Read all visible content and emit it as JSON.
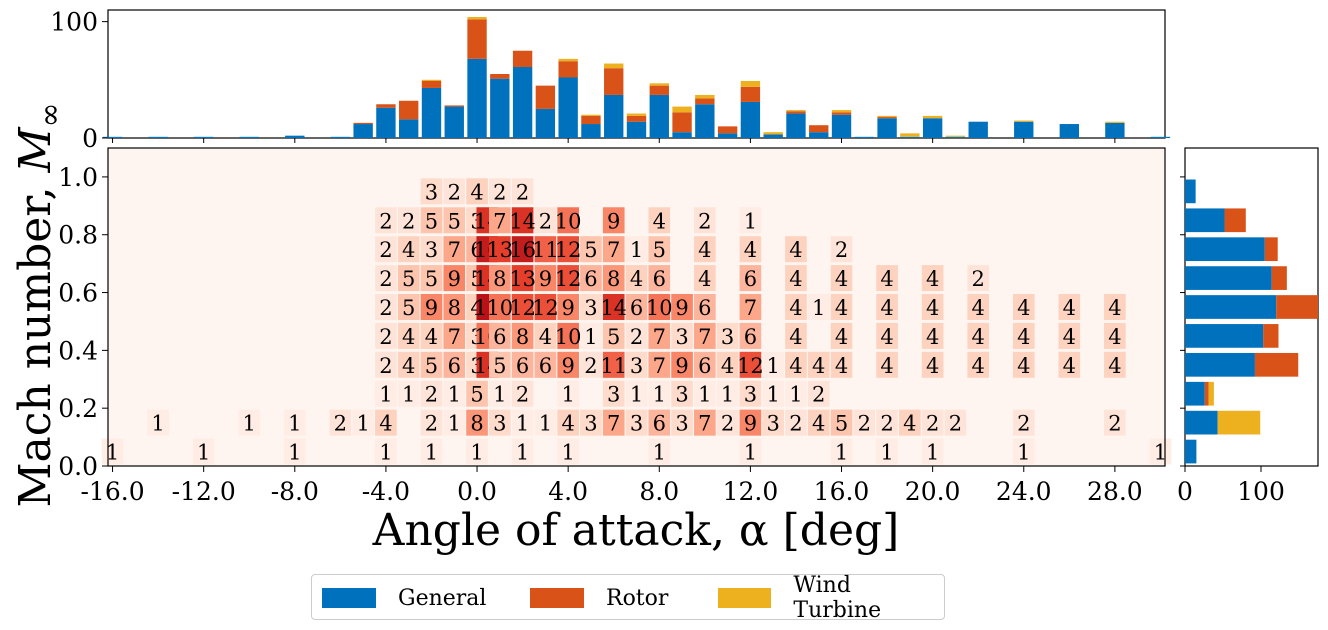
{
  "chart_data": {
    "type": "heatmap",
    "xlabel": "Angle of attack, α [deg]",
    "ylabel_main": "Mach number, ",
    "ylabel_symbol": "M",
    "ylabel_subscript": "∞",
    "x_ticks": [
      "-16.0",
      "-12.0",
      "-8.0",
      "-4.0",
      "0.0",
      "4.0",
      "8.0",
      "12.0",
      "16.0",
      "20.0",
      "24.0",
      "28.0"
    ],
    "x_tick_values": [
      -16,
      -12,
      -8,
      -4,
      0,
      4,
      8,
      12,
      16,
      20,
      24,
      28
    ],
    "y_ticks": [
      "0.0",
      "0.2",
      "0.4",
      "0.6",
      "0.8",
      "1.0"
    ],
    "y_tick_values": [
      0.0,
      0.2,
      0.4,
      0.6,
      0.8,
      1.0
    ],
    "xlim": [
      -16.2,
      30.2
    ],
    "ylim": [
      0.0,
      1.1
    ],
    "heatmap_max": 17,
    "colormap": [
      "#fff5f0",
      "#fdd0bc",
      "#fb8f6f",
      "#e8412c",
      "#b81118"
    ],
    "x_bins": [
      -16,
      -15,
      -14,
      -13,
      -12,
      -11,
      -10,
      -9,
      -8,
      -7,
      -6,
      -5,
      -4,
      -3,
      -2,
      -1,
      0,
      1,
      2,
      3,
      4,
      5,
      6,
      7,
      8,
      9,
      10,
      11,
      12,
      13,
      14,
      15,
      16,
      17,
      18,
      19,
      20,
      21,
      22,
      23,
      24,
      25,
      26,
      27,
      28,
      29,
      30
    ],
    "y_bins": [
      0.05,
      0.15,
      0.25,
      0.35,
      0.45,
      0.55,
      0.65,
      0.75,
      0.85,
      0.95
    ],
    "heatmap_rows": [
      {
        "y": 0.05,
        "cells": [
          [
            -16,
            1
          ],
          [
            -12,
            1
          ],
          [
            -8,
            1
          ],
          [
            -4,
            1
          ],
          [
            -2,
            1
          ],
          [
            0,
            1
          ],
          [
            2,
            1
          ],
          [
            4,
            1
          ],
          [
            8,
            1
          ],
          [
            12,
            1
          ],
          [
            16,
            1
          ],
          [
            18,
            1
          ],
          [
            20,
            1
          ],
          [
            24,
            1
          ],
          [
            30,
            1
          ]
        ]
      },
      {
        "y": 0.15,
        "cells": [
          [
            -14,
            1
          ],
          [
            -10,
            1
          ],
          [
            -8,
            1
          ],
          [
            -6,
            2
          ],
          [
            -5,
            1
          ],
          [
            -4,
            4
          ],
          [
            -2,
            2
          ],
          [
            -1,
            1
          ],
          [
            0,
            8
          ],
          [
            1,
            3
          ],
          [
            2,
            1
          ],
          [
            3,
            1
          ],
          [
            4,
            4
          ],
          [
            5,
            3
          ],
          [
            6,
            7
          ],
          [
            7,
            3
          ],
          [
            8,
            6
          ],
          [
            9,
            3
          ],
          [
            10,
            7
          ],
          [
            11,
            2
          ],
          [
            12,
            9
          ],
          [
            13,
            3
          ],
          [
            14,
            2
          ],
          [
            15,
            4
          ],
          [
            16,
            5
          ],
          [
            17,
            2
          ],
          [
            18,
            2
          ],
          [
            19,
            4
          ],
          [
            20,
            2
          ],
          [
            21,
            2
          ],
          [
            24,
            2
          ],
          [
            28,
            2
          ]
        ]
      },
      {
        "y": 0.25,
        "cells": [
          [
            -4,
            1
          ],
          [
            -3,
            1
          ],
          [
            -2,
            2
          ],
          [
            -1,
            1
          ],
          [
            0,
            5
          ],
          [
            1,
            1
          ],
          [
            2,
            2
          ],
          [
            4,
            1
          ],
          [
            6,
            3
          ],
          [
            7,
            1
          ],
          [
            8,
            1
          ],
          [
            9,
            3
          ],
          [
            10,
            1
          ],
          [
            11,
            1
          ],
          [
            12,
            3
          ],
          [
            13,
            1
          ],
          [
            14,
            1
          ],
          [
            15,
            2
          ]
        ]
      },
      {
        "y": 0.35,
        "cells": [
          [
            -4,
            2
          ],
          [
            -3,
            4
          ],
          [
            -2,
            5
          ],
          [
            -1,
            6
          ],
          [
            0,
            3
          ],
          [
            0,
            14
          ],
          [
            1,
            5
          ],
          [
            2,
            6
          ],
          [
            3,
            6
          ],
          [
            4,
            9
          ],
          [
            5,
            2
          ],
          [
            6,
            11
          ],
          [
            7,
            3
          ],
          [
            8,
            7
          ],
          [
            9,
            9
          ],
          [
            10,
            6
          ],
          [
            11,
            4
          ],
          [
            12,
            12
          ],
          [
            13,
            1
          ],
          [
            14,
            4
          ],
          [
            15,
            4
          ],
          [
            16,
            4
          ],
          [
            18,
            4
          ],
          [
            20,
            4
          ],
          [
            22,
            4
          ],
          [
            24,
            4
          ],
          [
            26,
            4
          ],
          [
            28,
            4
          ]
        ]
      },
      {
        "y": 0.45,
        "cells": [
          [
            -4,
            2
          ],
          [
            -3,
            4
          ],
          [
            -2,
            4
          ],
          [
            -1,
            7
          ],
          [
            0,
            3
          ],
          [
            0,
            10
          ],
          [
            1,
            6
          ],
          [
            2,
            8
          ],
          [
            3,
            4
          ],
          [
            4,
            10
          ],
          [
            5,
            1
          ],
          [
            6,
            5
          ],
          [
            7,
            2
          ],
          [
            8,
            7
          ],
          [
            9,
            3
          ],
          [
            10,
            7
          ],
          [
            11,
            3
          ],
          [
            12,
            6
          ],
          [
            14,
            4
          ],
          [
            16,
            4
          ],
          [
            18,
            4
          ],
          [
            20,
            4
          ],
          [
            22,
            4
          ],
          [
            24,
            4
          ],
          [
            26,
            4
          ],
          [
            28,
            4
          ]
        ]
      },
      {
        "y": 0.55,
        "cells": [
          [
            -4,
            2
          ],
          [
            -3,
            5
          ],
          [
            -2,
            9
          ],
          [
            -1,
            8
          ],
          [
            0,
            4
          ],
          [
            0,
            17
          ],
          [
            1,
            10
          ],
          [
            2,
            12
          ],
          [
            3,
            12
          ],
          [
            4,
            9
          ],
          [
            5,
            3
          ],
          [
            6,
            14
          ],
          [
            7,
            6
          ],
          [
            8,
            10
          ],
          [
            9,
            9
          ],
          [
            10,
            6
          ],
          [
            12,
            7
          ],
          [
            14,
            4
          ],
          [
            15,
            1
          ],
          [
            16,
            4
          ],
          [
            18,
            4
          ],
          [
            20,
            4
          ],
          [
            22,
            4
          ],
          [
            24,
            4
          ],
          [
            26,
            4
          ],
          [
            28,
            4
          ]
        ]
      },
      {
        "y": 0.65,
        "cells": [
          [
            -4,
            2
          ],
          [
            -3,
            5
          ],
          [
            -2,
            5
          ],
          [
            -1,
            9
          ],
          [
            0,
            5
          ],
          [
            0,
            14
          ],
          [
            1,
            8
          ],
          [
            2,
            13
          ],
          [
            3,
            9
          ],
          [
            4,
            12
          ],
          [
            5,
            6
          ],
          [
            6,
            8
          ],
          [
            7,
            4
          ],
          [
            8,
            6
          ],
          [
            10,
            4
          ],
          [
            12,
            6
          ],
          [
            14,
            4
          ],
          [
            16,
            4
          ],
          [
            18,
            4
          ],
          [
            20,
            4
          ],
          [
            22,
            2
          ]
        ]
      },
      {
        "y": 0.75,
        "cells": [
          [
            -4,
            2
          ],
          [
            -3,
            4
          ],
          [
            -2,
            3
          ],
          [
            -1,
            7
          ],
          [
            0,
            6
          ],
          [
            0,
            16
          ],
          [
            1,
            13
          ],
          [
            2,
            16
          ],
          [
            3,
            11
          ],
          [
            4,
            12
          ],
          [
            5,
            5
          ],
          [
            6,
            7
          ],
          [
            7,
            1
          ],
          [
            8,
            5
          ],
          [
            10,
            4
          ],
          [
            12,
            4
          ],
          [
            14,
            4
          ],
          [
            16,
            2
          ]
        ]
      },
      {
        "y": 0.85,
        "cells": [
          [
            -4,
            2
          ],
          [
            -3,
            2
          ],
          [
            -2,
            5
          ],
          [
            -1,
            5
          ],
          [
            0,
            3
          ],
          [
            0,
            14
          ],
          [
            1,
            7
          ],
          [
            2,
            14
          ],
          [
            3,
            2
          ],
          [
            4,
            10
          ],
          [
            6,
            9
          ],
          [
            8,
            4
          ],
          [
            10,
            2
          ],
          [
            12,
            1
          ]
        ]
      },
      {
        "y": 0.95,
        "cells": [
          [
            -2,
            3
          ],
          [
            -1,
            2
          ],
          [
            0,
            4
          ],
          [
            1,
            2
          ],
          [
            2,
            2
          ]
        ]
      }
    ],
    "top_histogram": {
      "ylim": [
        0,
        110
      ],
      "y_ticks": [
        "0",
        "100"
      ],
      "y_tick_values": [
        0,
        100
      ],
      "bins": [
        -16,
        -14,
        -12,
        -10,
        -8,
        -6,
        -5,
        -4,
        -3,
        -2,
        -1,
        0,
        1,
        2,
        3,
        4,
        5,
        6,
        7,
        8,
        9,
        10,
        11,
        12,
        13,
        14,
        15,
        16,
        17,
        18,
        19,
        20,
        21,
        22,
        24,
        26,
        28,
        30
      ],
      "series": [
        {
          "name": "General",
          "values": [
            1,
            1,
            1,
            1,
            2,
            1,
            12,
            26,
            16,
            43,
            27,
            68,
            51,
            61,
            25,
            52,
            12,
            37,
            14,
            37,
            5,
            29,
            4,
            31,
            3,
            21,
            5,
            20,
            1,
            17,
            1,
            17,
            1,
            14,
            14,
            12,
            13,
            1
          ]
        },
        {
          "name": "Rotor",
          "values": [
            0,
            0,
            0,
            0,
            0,
            0,
            1,
            3,
            16,
            6,
            1,
            34,
            4,
            14,
            20,
            14,
            7,
            23,
            5,
            8,
            17,
            5,
            6,
            13,
            0,
            2,
            6,
            2,
            0,
            1,
            0,
            0,
            0,
            0,
            0,
            0,
            0,
            0
          ]
        },
        {
          "name": "Wind Turbine",
          "values": [
            0,
            0,
            0,
            0,
            0,
            0,
            0,
            0,
            0,
            1,
            0,
            2,
            0,
            0,
            0,
            2,
            1,
            4,
            2,
            2,
            5,
            3,
            0,
            5,
            2,
            1,
            0,
            2,
            0,
            1,
            3,
            2,
            1,
            0,
            1,
            0,
            1,
            0
          ]
        }
      ]
    },
    "right_histogram": {
      "xlim": [
        0,
        175
      ],
      "x_ticks": [
        "0",
        "100"
      ],
      "x_tick_values": [
        0,
        100
      ],
      "series": [
        {
          "name": "General",
          "values": [
            15,
            43,
            26,
            92,
            103,
            120,
            114,
            105,
            52,
            14
          ]
        },
        {
          "name": "Rotor",
          "values": [
            0,
            0,
            5,
            57,
            20,
            55,
            20,
            17,
            28,
            0
          ]
        },
        {
          "name": "Wind Turbine",
          "values": [
            0,
            56,
            7,
            0,
            0,
            0,
            0,
            0,
            0,
            0
          ]
        }
      ]
    },
    "colors": {
      "General": "#0072bd",
      "Rotor": "#d95319",
      "Wind Turbine": "#edb120"
    }
  },
  "legend": {
    "items": [
      {
        "label": "General",
        "color": "#0072bd"
      },
      {
        "label": "Rotor",
        "color": "#d95319"
      },
      {
        "label": "Wind Turbine",
        "color": "#edb120"
      }
    ]
  }
}
